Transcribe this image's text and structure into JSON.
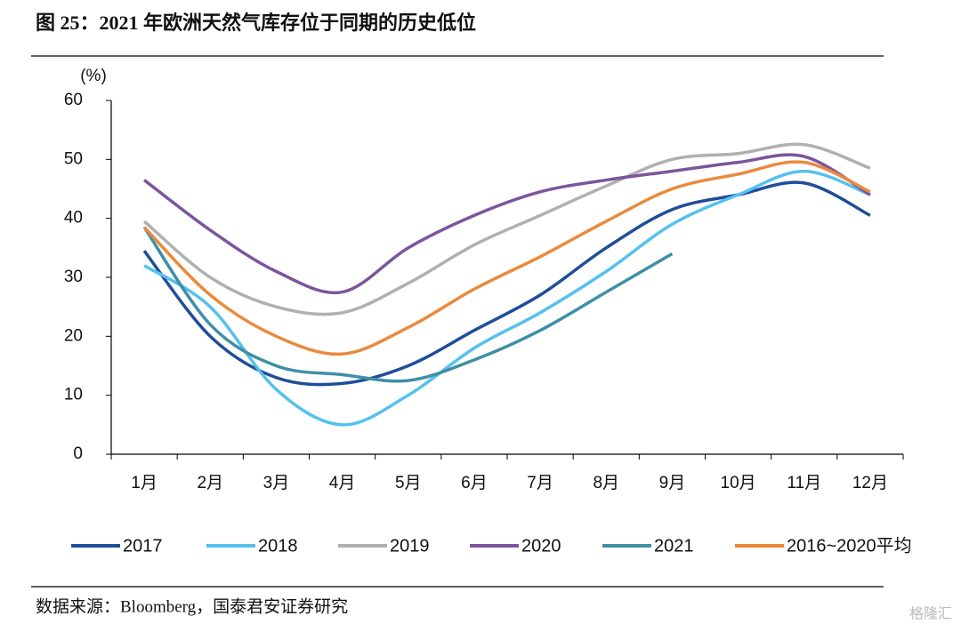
{
  "chart_data": {
    "type": "line",
    "title": "图 25：2021 年欧洲天然气库存位于同期的历史低位",
    "y_label": "(%)",
    "source": "数据来源：Bloomberg，国泰君安证券研究",
    "watermark": "格隆汇",
    "categories": [
      "1月",
      "2月",
      "3月",
      "4月",
      "5月",
      "6月",
      "7月",
      "8月",
      "9月",
      "10月",
      "11月",
      "12月"
    ],
    "ylim": [
      0,
      60
    ],
    "yticks": [
      0,
      10,
      20,
      30,
      40,
      50,
      60
    ],
    "series": [
      {
        "name": "2017",
        "color": "#1f4e99",
        "values": [
          34.5,
          20,
          13,
          12,
          15,
          21,
          27,
          35,
          41.5,
          44,
          46,
          40.5
        ]
      },
      {
        "name": "2018",
        "color": "#56c1ee",
        "values": [
          32,
          25,
          11,
          5,
          10,
          18,
          24,
          31,
          39,
          44,
          48,
          44
        ]
      },
      {
        "name": "2019",
        "color": "#b0b0b0",
        "values": [
          39.5,
          30,
          25,
          24,
          29,
          35.5,
          40.5,
          45.5,
          50,
          51,
          52.5,
          48.5
        ]
      },
      {
        "name": "2020",
        "color": "#7b559c",
        "values": [
          46.5,
          38,
          31,
          27.5,
          35,
          40.5,
          44.5,
          46.5,
          48,
          49.5,
          50.5,
          44
        ]
      },
      {
        "name": "2021",
        "color": "#3f8fa5",
        "values": [
          38.5,
          22,
          15,
          13.5,
          12.5,
          16,
          21,
          27.5,
          34,
          null,
          null,
          null
        ]
      },
      {
        "name": "2016~2020平均",
        "color": "#ea8a3c",
        "values": [
          38.5,
          27,
          20,
          17,
          21.5,
          28,
          33.5,
          39.5,
          45,
          47.5,
          49.5,
          44.5
        ]
      }
    ]
  }
}
